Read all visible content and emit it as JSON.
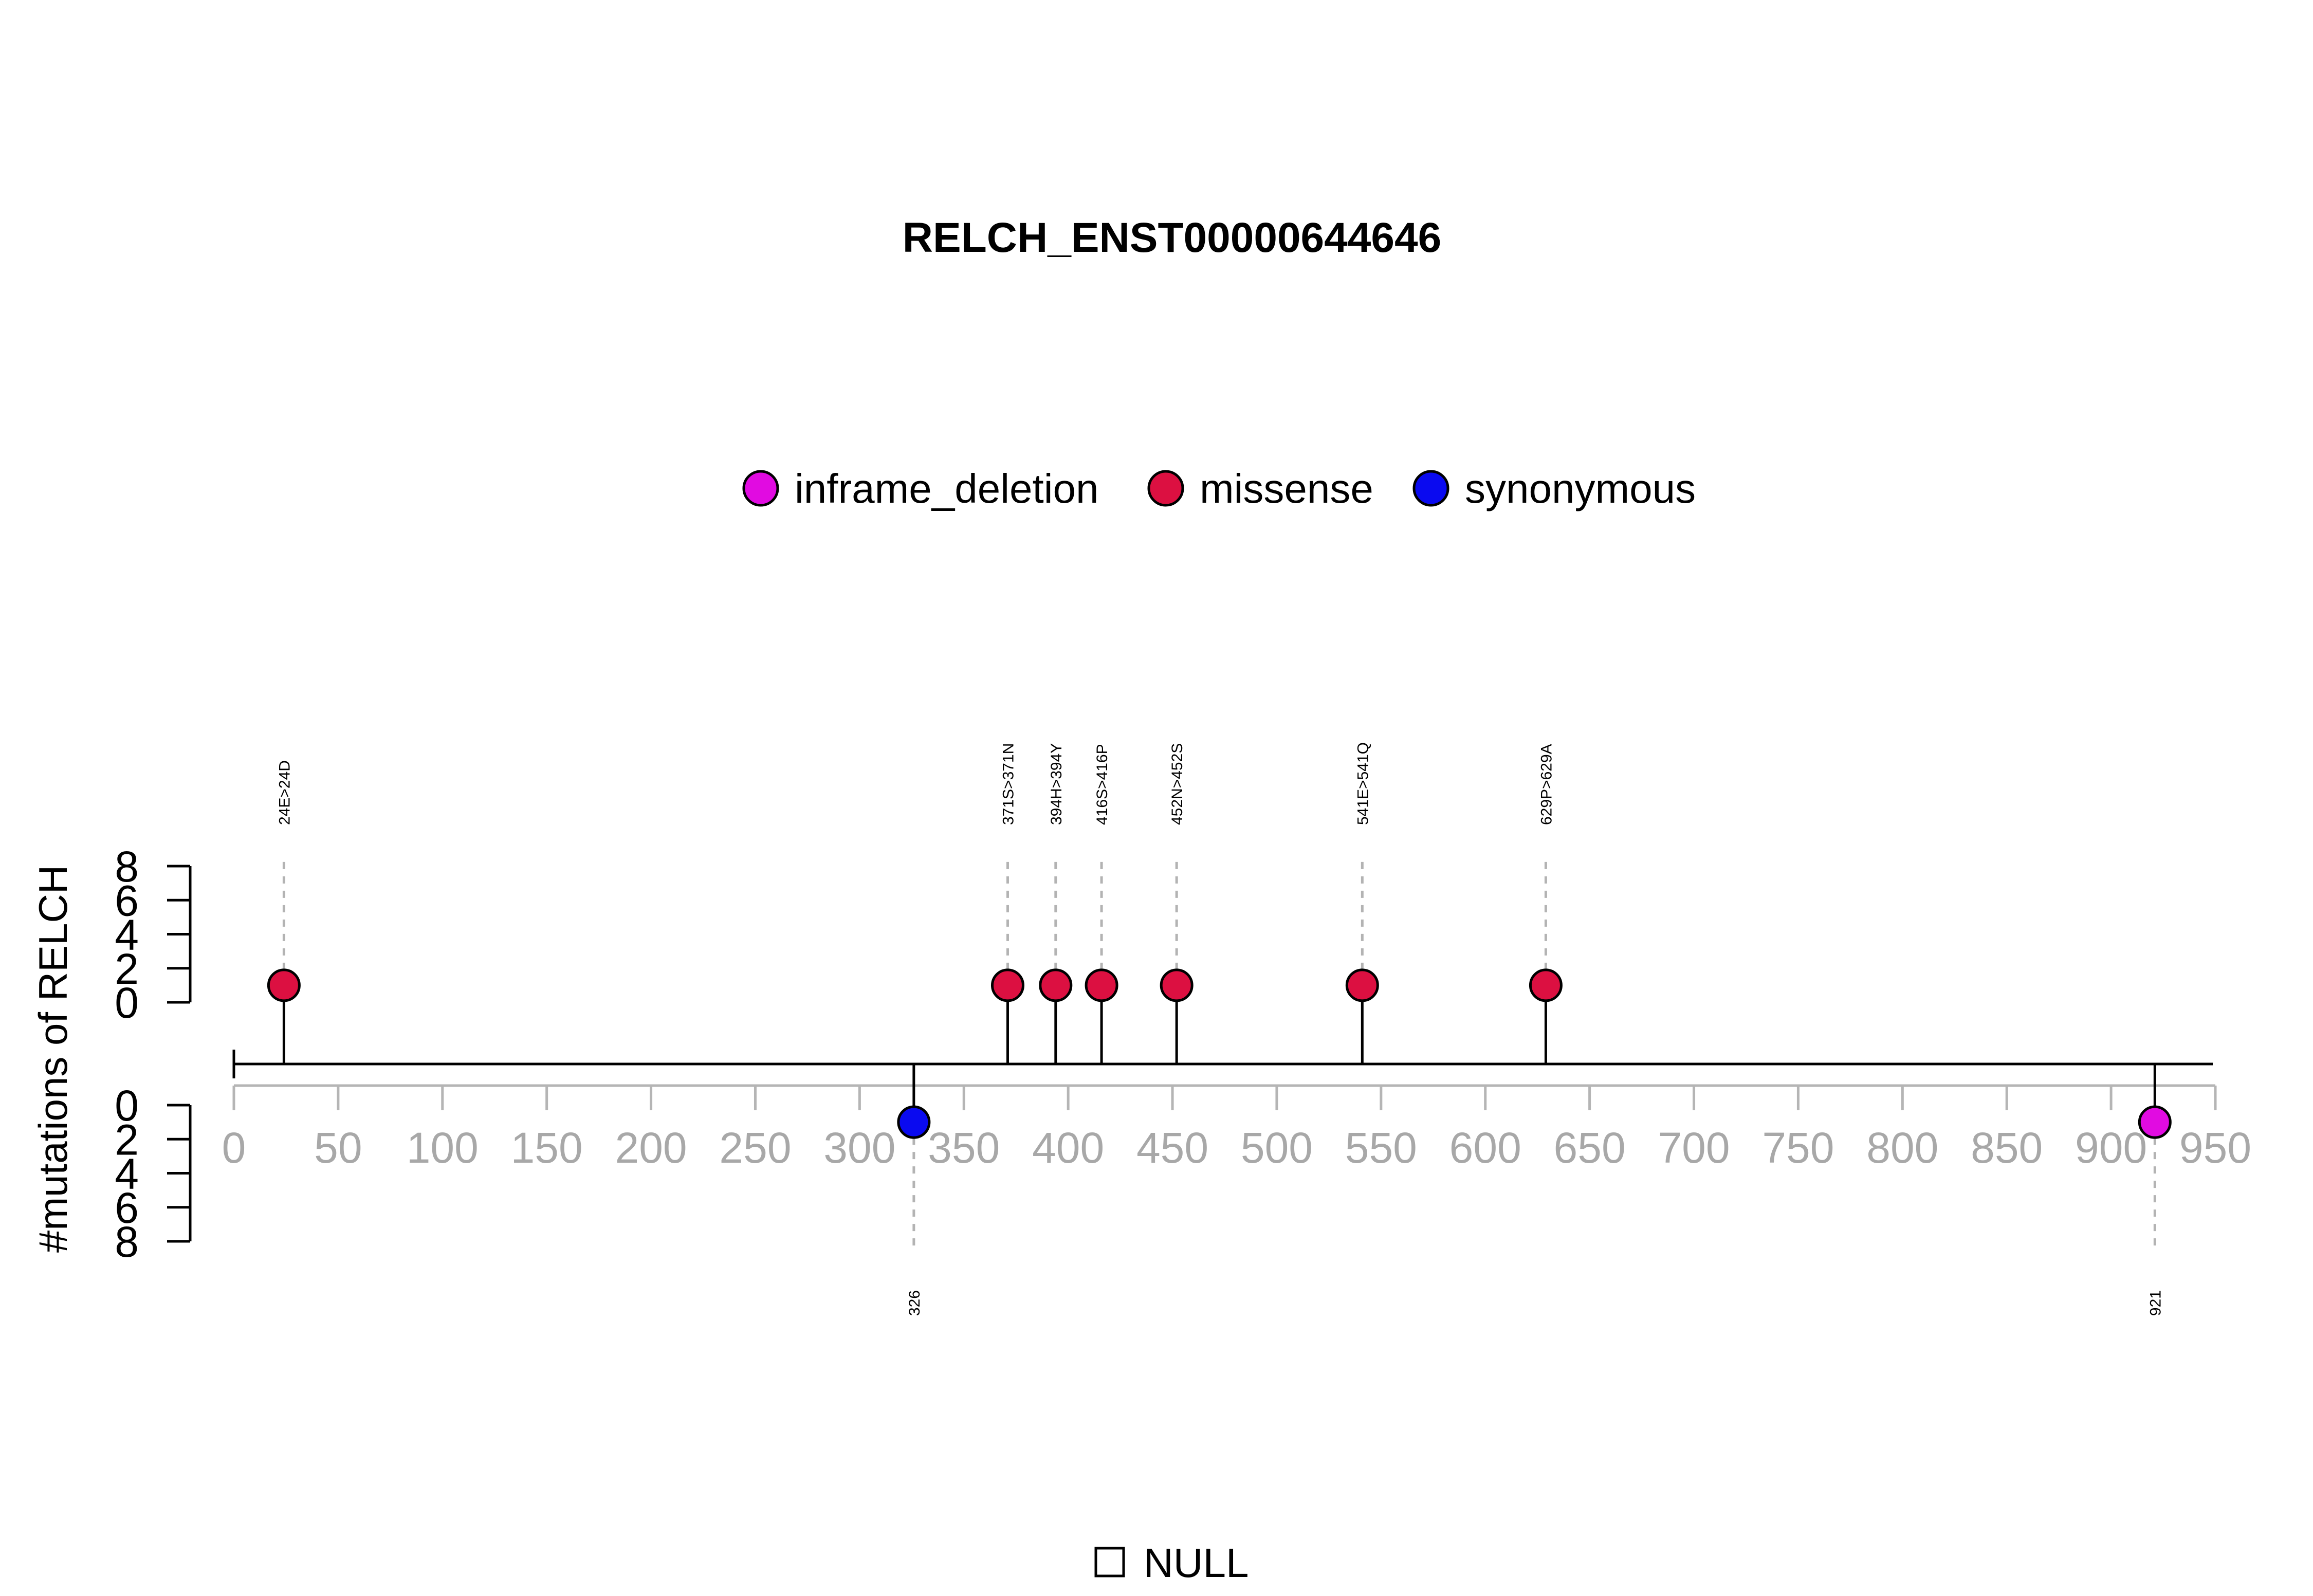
{
  "chart_data": {
    "type": "lollipop",
    "title": "RELCH_ENST00000644646",
    "ylabel": "#mutations of RELCH",
    "xlim": [
      0,
      950
    ],
    "x_ticks": [
      0,
      50,
      100,
      150,
      200,
      250,
      300,
      350,
      400,
      450,
      500,
      550,
      600,
      650,
      700,
      750,
      800,
      850,
      900,
      950
    ],
    "ylim_top": [
      0,
      8
    ],
    "ylim_bottom": [
      0,
      8
    ],
    "y_ticks_top": [
      0,
      2,
      4,
      6,
      8
    ],
    "y_ticks_bottom": [
      0,
      2,
      4,
      6,
      8
    ],
    "legend": {
      "position": "top-center",
      "entries": [
        {
          "label": "inframe_deletion",
          "color": "#E10BE1"
        },
        {
          "label": "missense",
          "color": "#DC1041"
        },
        {
          "label": "synonymous",
          "color": "#0A0AF0"
        }
      ]
    },
    "domain_legend": {
      "position": "bottom-center",
      "entries": [
        {
          "label": "NULL"
        }
      ]
    },
    "top_mutations": [
      {
        "position": 24,
        "count": 1,
        "label": "24E>24D",
        "type": "missense"
      },
      {
        "position": 371,
        "count": 1,
        "label": "371S>371N",
        "type": "missense"
      },
      {
        "position": 394,
        "count": 1,
        "label": "394H>394Y",
        "type": "missense"
      },
      {
        "position": 416,
        "count": 1,
        "label": "416S>416P",
        "type": "missense"
      },
      {
        "position": 452,
        "count": 1,
        "label": "452N>452S",
        "type": "missense"
      },
      {
        "position": 541,
        "count": 1,
        "label": "541E>541Q",
        "type": "missense"
      },
      {
        "position": 629,
        "count": 1,
        "label": "629P>629A",
        "type": "missense"
      }
    ],
    "bottom_mutations": [
      {
        "position": 326,
        "count": 1,
        "label": "326",
        "type": "synonymous"
      },
      {
        "position": 921,
        "count": 1,
        "label": "921",
        "type": "inframe_deletion"
      }
    ]
  }
}
